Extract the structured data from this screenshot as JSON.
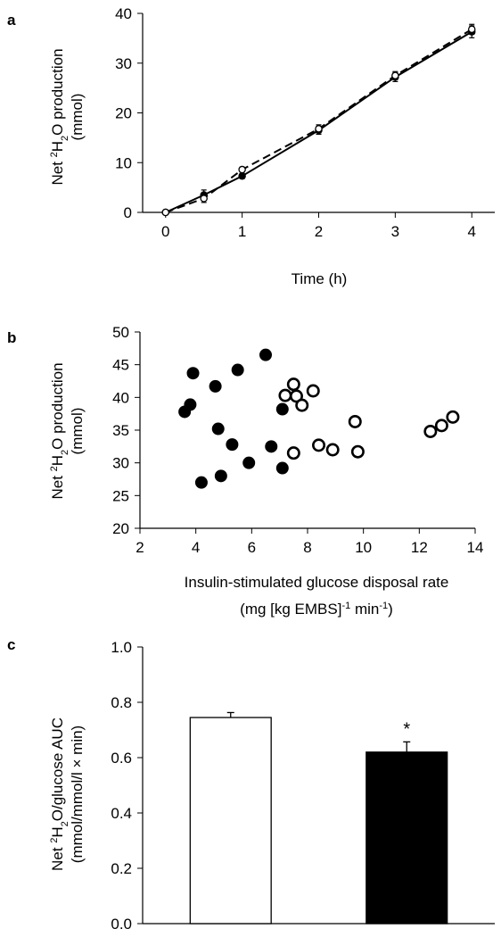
{
  "chart_data": [
    {
      "type": "line",
      "panel_label": "a",
      "ylabel_parts": [
        "Net ",
        "2",
        "H",
        "2",
        "O production",
        "(mmol)"
      ],
      "xlabel": "Time (h)",
      "xlim": [
        -0.3,
        4.3
      ],
      "ylim": [
        0,
        40
      ],
      "xticks": [
        "0",
        "1",
        "2",
        "3",
        "4"
      ],
      "yticks": [
        "0",
        "10",
        "20",
        "30",
        "40"
      ],
      "series": [
        {
          "style": "solid",
          "marker": "filled",
          "color": "#000000",
          "x": [
            0,
            0.5,
            1,
            2,
            3,
            4
          ],
          "y": [
            0,
            3.5,
            7.3,
            16.5,
            27.2,
            36.3
          ],
          "err": [
            0.3,
            1.0,
            0.5,
            0.8,
            0.9,
            1.2
          ]
        },
        {
          "style": "dashed",
          "marker": "open",
          "color": "#000000",
          "x": [
            0,
            0.5,
            1,
            2,
            3,
            4
          ],
          "y": [
            0,
            2.8,
            8.6,
            16.8,
            27.5,
            36.8
          ],
          "err": [
            0.3,
            0.8,
            0.5,
            0.8,
            0.8,
            1.0
          ]
        }
      ]
    },
    {
      "type": "scatter",
      "panel_label": "b",
      "ylabel_parts": [
        "Net ",
        "2",
        "H",
        "2",
        "O production",
        "(mmol)"
      ],
      "xlabel_line1": "Insulin-stimulated glucose disposal rate",
      "xlabel_line2_parts": [
        "(mg [kg EMBS]",
        "-1",
        " min",
        "-1",
        ")"
      ],
      "xlim": [
        2,
        14
      ],
      "ylim": [
        20,
        50
      ],
      "xticks": [
        "2",
        "4",
        "6",
        "8",
        "10",
        "12",
        "14"
      ],
      "yticks": [
        "20",
        "25",
        "30",
        "35",
        "40",
        "45",
        "50"
      ],
      "series": [
        {
          "marker": "filled",
          "color": "#000000",
          "x": [
            3.6,
            3.8,
            3.9,
            4.2,
            4.7,
            4.8,
            4.9,
            5.3,
            5.5,
            5.9,
            6.5,
            6.7,
            7.1,
            7.1
          ],
          "y": [
            37.8,
            38.9,
            43.7,
            27.0,
            41.7,
            35.2,
            28.0,
            32.8,
            44.2,
            30.0,
            46.5,
            32.5,
            38.2,
            29.2
          ]
        },
        {
          "marker": "open",
          "color": "#000000",
          "x": [
            7.2,
            7.5,
            7.5,
            7.6,
            7.8,
            8.2,
            8.4,
            8.9,
            9.7,
            9.8,
            12.4,
            12.8,
            13.2
          ],
          "y": [
            40.3,
            42.0,
            31.5,
            40.2,
            38.8,
            41.0,
            32.7,
            32.0,
            36.3,
            31.7,
            34.8,
            35.7,
            37.0
          ]
        }
      ]
    },
    {
      "type": "bar",
      "panel_label": "c",
      "ylabel_parts": [
        "Net ",
        "2",
        "H",
        "2",
        "O/glucose AUC",
        "(mmol/mmol/l × min)"
      ],
      "xlabel": "",
      "ylim": [
        0,
        1.0
      ],
      "yticks": [
        "0.0",
        "0.2",
        "0.4",
        "0.6",
        "0.8",
        "1.0"
      ],
      "bars": [
        {
          "value": 0.745,
          "err": 0.018,
          "fill": "#ffffff",
          "annotation": ""
        },
        {
          "value": 0.62,
          "err": 0.037,
          "fill": "#000000",
          "annotation": "*"
        }
      ]
    }
  ]
}
